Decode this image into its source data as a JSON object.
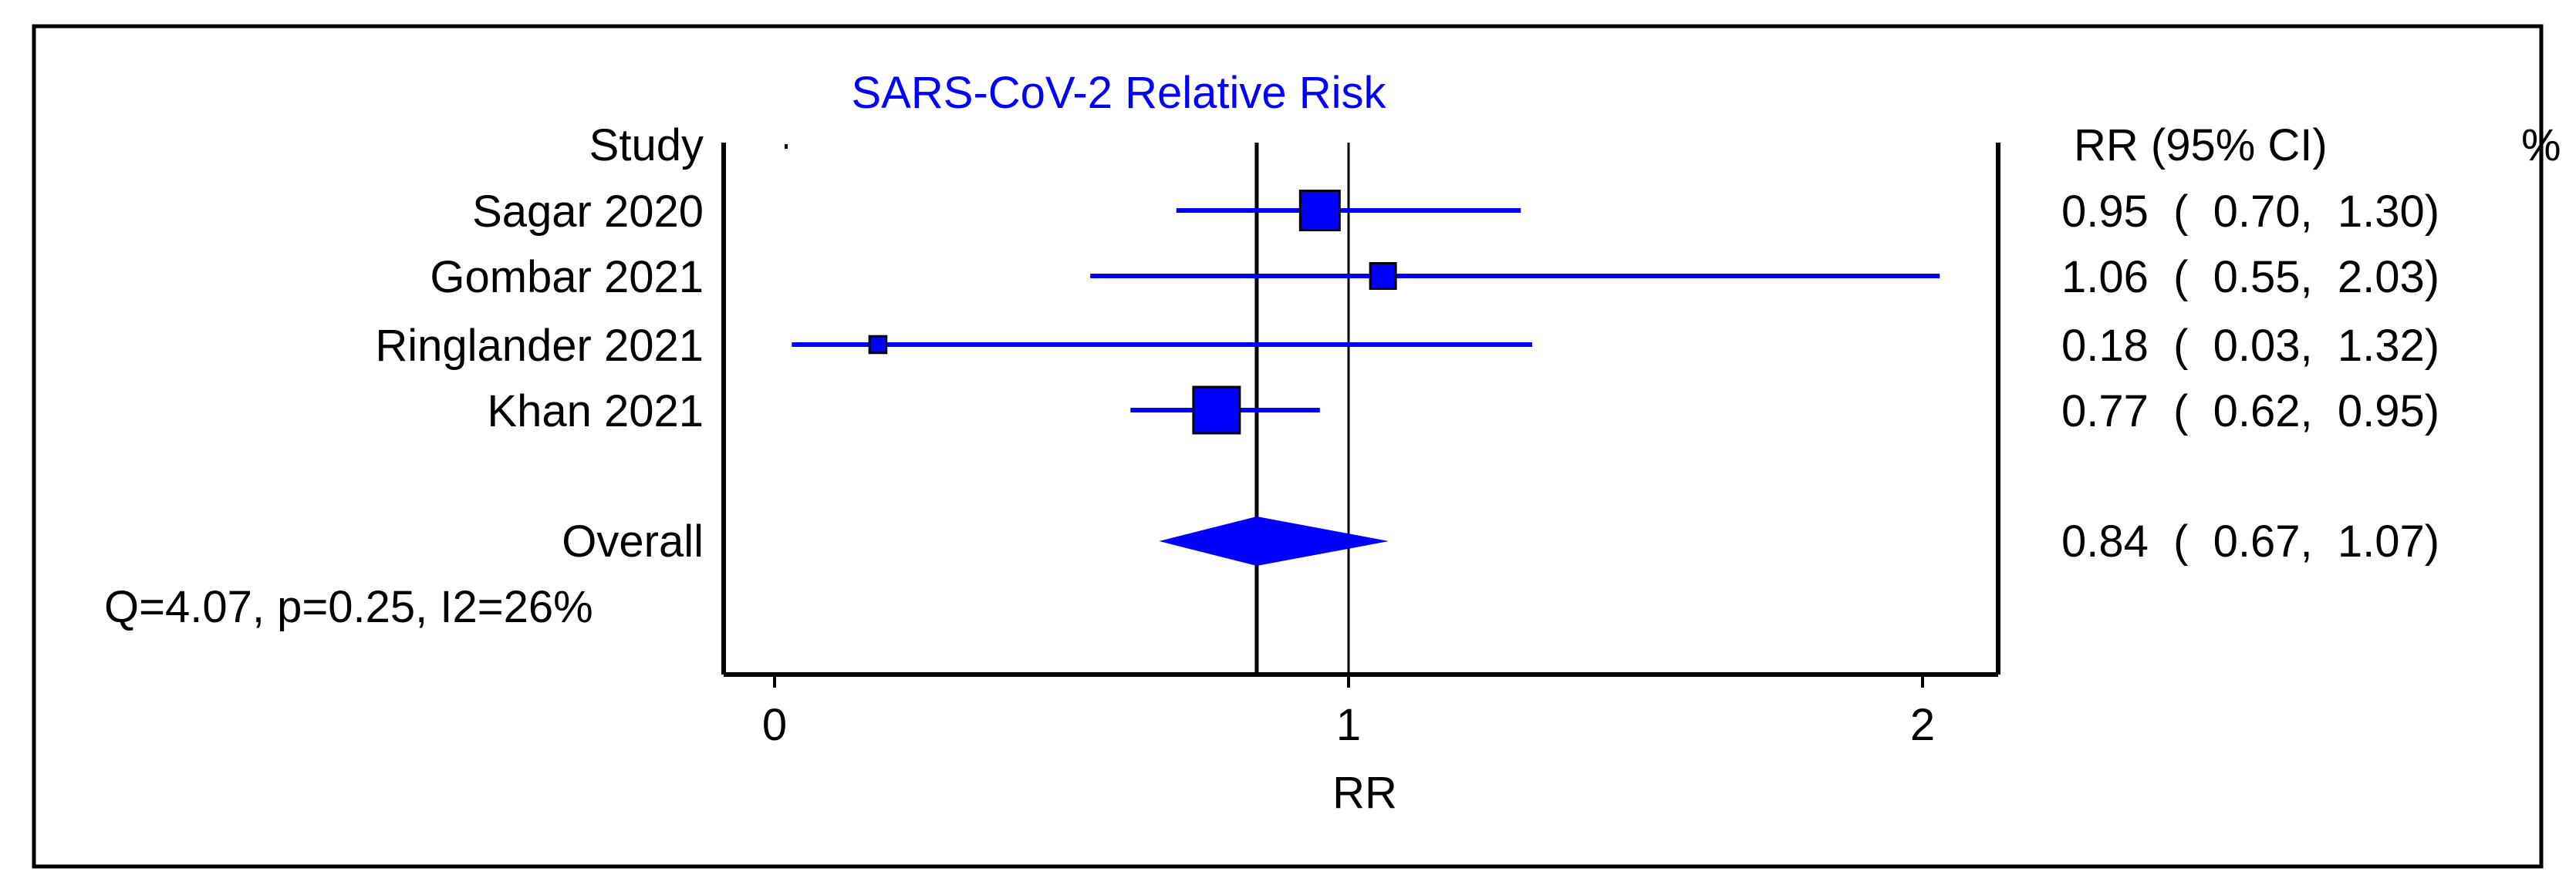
{
  "chart_data": {
    "type": "forest",
    "title": "SARS-CoV-2 Relative Risk",
    "xlabel": "RR",
    "xlim": [
      0,
      2.1
    ],
    "xticks": [
      "0",
      "1",
      "2"
    ],
    "null_value": 1,
    "pooled_estimate": 0.84,
    "column_headers": {
      "study": "Study",
      "effect": "RR (95% CI)",
      "weight": "%"
    },
    "studies": [
      {
        "name": "Sagar 2020",
        "rr": 0.95,
        "lower": 0.7,
        "upper": 1.3,
        "label": "0.95  (  0.70,  1.30)",
        "weight_size": 0.85
      },
      {
        "name": "Gombar 2021",
        "rr": 1.06,
        "lower": 0.55,
        "upper": 2.03,
        "label": "1.06  (  0.55,  2.03)",
        "weight_size": 0.55
      },
      {
        "name": "Ringlander 2021",
        "rr": 0.18,
        "lower": 0.03,
        "upper": 1.32,
        "label": "0.18  (  0.03,  1.32)",
        "weight_size": 0.36
      },
      {
        "name": "Khan 2021",
        "rr": 0.77,
        "lower": 0.62,
        "upper": 0.95,
        "label": "0.77  (  0.62,  0.95)",
        "weight_size": 1.0
      }
    ],
    "overall": {
      "name": "Overall",
      "rr": 0.84,
      "lower": 0.67,
      "upper": 1.07,
      "label": "0.84  (  0.67,  1.07)"
    },
    "heterogeneity": "Q=4.07, p=0.25, I2=26%",
    "colors": {
      "marker": "#0000ff",
      "title": "#0000ff",
      "axis": "#000000"
    }
  }
}
